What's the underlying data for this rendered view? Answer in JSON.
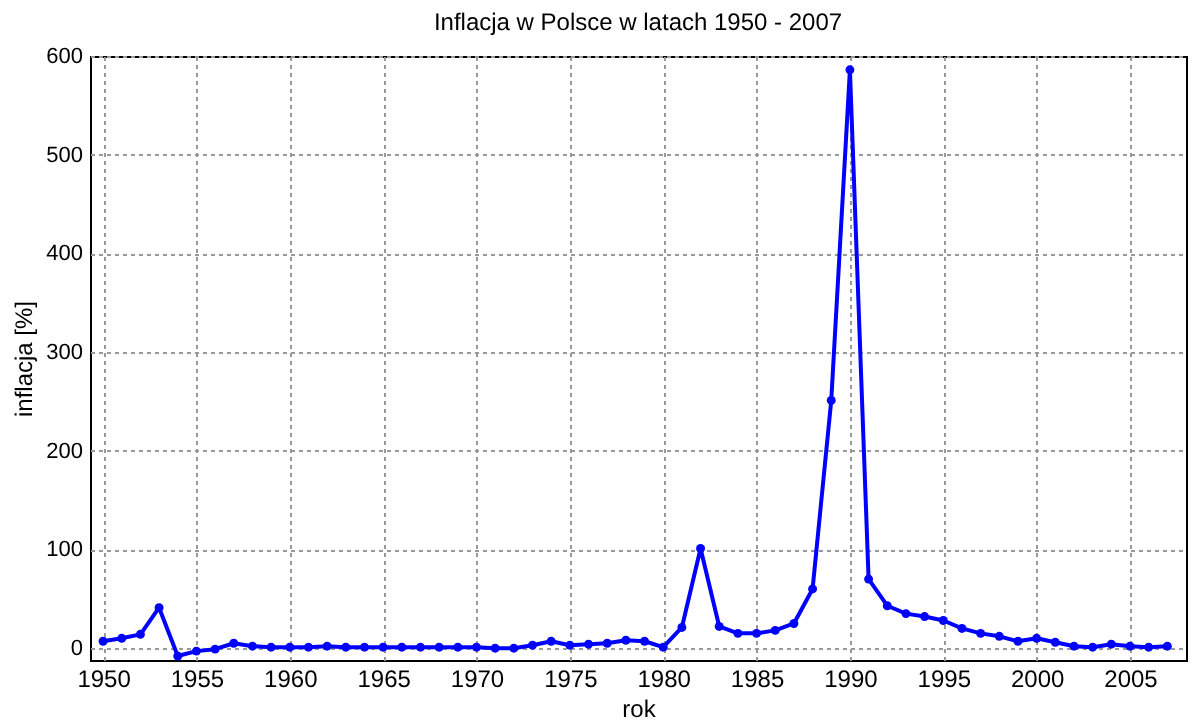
{
  "chart_data": {
    "type": "line",
    "title": "Inflacja w Polsce w latach 1950 - 2007",
    "xlabel": "rok",
    "ylabel": "inflacja [%]",
    "x": [
      1950,
      1951,
      1952,
      1953,
      1954,
      1955,
      1956,
      1957,
      1958,
      1959,
      1960,
      1961,
      1962,
      1963,
      1964,
      1965,
      1966,
      1967,
      1968,
      1969,
      1970,
      1971,
      1972,
      1973,
      1974,
      1975,
      1976,
      1977,
      1978,
      1979,
      1980,
      1981,
      1982,
      1983,
      1984,
      1985,
      1986,
      1987,
      1988,
      1989,
      1990,
      1991,
      1992,
      1993,
      1994,
      1995,
      1996,
      1997,
      1998,
      1999,
      2000,
      2001,
      2002,
      2003,
      2004,
      2005,
      2006,
      2007
    ],
    "series": [
      {
        "color": "#0000ff",
        "values": [
          7,
          10,
          14,
          41,
          -8,
          -3,
          -1,
          5,
          2,
          1,
          1,
          1,
          2,
          1,
          1,
          1,
          1,
          1,
          1,
          1,
          1,
          0,
          0,
          3,
          7,
          3,
          4,
          5,
          8,
          7,
          1,
          21,
          101,
          22,
          15,
          15,
          18,
          25,
          60,
          251,
          586,
          70,
          43,
          35,
          32,
          28,
          20,
          15,
          12,
          7,
          10,
          6,
          2,
          1,
          4,
          2,
          1,
          2
        ]
      }
    ],
    "xlim": [
      1949.3,
      2008
    ],
    "ylim": [
      -12,
      600
    ],
    "xticks": [
      1950,
      1955,
      1960,
      1965,
      1970,
      1975,
      1980,
      1985,
      1990,
      1995,
      2000,
      2005
    ],
    "yticks": [
      0,
      100,
      200,
      300,
      400,
      500,
      600
    ],
    "grid": true,
    "marker": "circle",
    "line_style": "solid"
  }
}
